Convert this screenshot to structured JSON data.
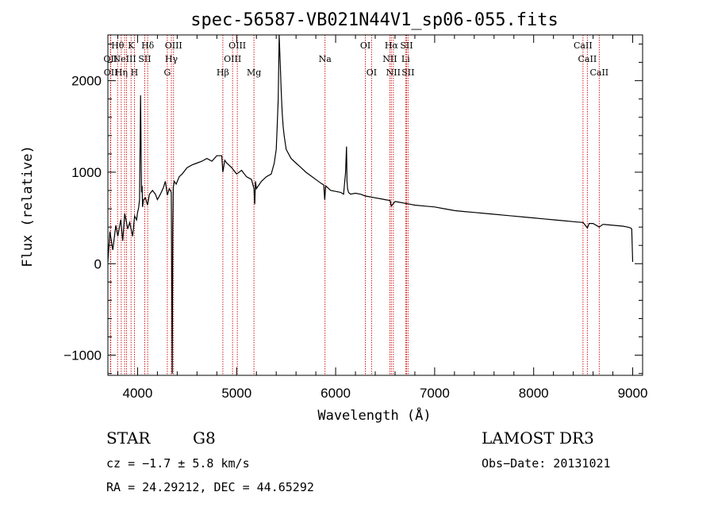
{
  "chart_data": {
    "type": "line",
    "title": "spec-56587-VB021N44V1_sp06-055.fits",
    "xlabel": "Wavelength (Å)",
    "ylabel": "Flux (relative)",
    "xlim": [
      3700,
      9100
    ],
    "ylim": [
      -1220,
      2500
    ],
    "xticks": [
      4000,
      5000,
      6000,
      7000,
      8000,
      9000
    ],
    "yticks": [
      -1000,
      0,
      1000,
      2000
    ],
    "grid": false,
    "series": [
      {
        "x": [
          3700,
          3720,
          3750,
          3780,
          3800,
          3830,
          3850,
          3870,
          3900,
          3920,
          3950,
          3970,
          3990,
          4000,
          4010,
          4020,
          4030,
          4040,
          4045,
          4050,
          4060,
          4080,
          4100,
          4120,
          4150,
          4180,
          4200,
          4230,
          4260,
          4280,
          4300,
          4320,
          4340,
          4350,
          4355,
          4360,
          4370,
          4390,
          4420,
          4450,
          4500,
          4550,
          4600,
          4650,
          4700,
          4750,
          4800,
          4850,
          4861,
          4880,
          4900,
          4950,
          5000,
          5050,
          5100,
          5150,
          5175,
          5183,
          5190,
          5200,
          5250,
          5300,
          5350,
          5380,
          5400,
          5410,
          5420,
          5430,
          5440,
          5450,
          5460,
          5470,
          5480,
          5500,
          5550,
          5600,
          5650,
          5700,
          5750,
          5800,
          5850,
          5880,
          5890,
          5895,
          5900,
          5920,
          5950,
          6000,
          6050,
          6080,
          6100,
          6110,
          6115,
          6120,
          6130,
          6150,
          6200,
          6250,
          6300,
          6350,
          6400,
          6450,
          6500,
          6550,
          6563,
          6600,
          6650,
          6700,
          6750,
          6800,
          6900,
          7000,
          7100,
          7200,
          7300,
          7400,
          7500,
          7600,
          7700,
          7800,
          7900,
          8000,
          8100,
          8200,
          8300,
          8400,
          8500,
          8542,
          8560,
          8600,
          8662,
          8700,
          8800,
          8900,
          8950,
          8980,
          8990,
          9000
        ],
        "y": [
          20,
          350,
          150,
          420,
          300,
          480,
          250,
          550,
          380,
          450,
          300,
          520,
          480,
          560,
          610,
          700,
          1840,
          780,
          850,
          620,
          700,
          720,
          640,
          760,
          800,
          760,
          700,
          760,
          830,
          900,
          750,
          820,
          780,
          -1200,
          400,
          830,
          900,
          870,
          950,
          980,
          1050,
          1080,
          1100,
          1120,
          1150,
          1120,
          1180,
          1180,
          1000,
          1130,
          1100,
          1050,
          980,
          1020,
          950,
          920,
          820,
          650,
          900,
          820,
          900,
          950,
          980,
          1100,
          1250,
          1500,
          1800,
          2500,
          2200,
          1900,
          1650,
          1500,
          1400,
          1250,
          1150,
          1100,
          1050,
          1000,
          960,
          920,
          880,
          860,
          700,
          780,
          850,
          830,
          800,
          790,
          780,
          760,
          1000,
          1280,
          900,
          820,
          780,
          760,
          770,
          760,
          740,
          730,
          720,
          710,
          700,
          690,
          630,
          680,
          670,
          660,
          650,
          640,
          630,
          620,
          600,
          580,
          570,
          560,
          550,
          540,
          530,
          520,
          510,
          500,
          490,
          480,
          470,
          460,
          450,
          390,
          440,
          440,
          400,
          430,
          420,
          410,
          400,
          390,
          380,
          20
        ]
      }
    ],
    "line_markers": [
      {
        "wl": 3726,
        "top": "",
        "mid": "OII",
        "low": ""
      },
      {
        "wl": 3729,
        "top": "",
        "mid": "",
        "low": "OII"
      },
      {
        "wl": 3798,
        "top": "Hθ",
        "mid": "",
        "low": ""
      },
      {
        "wl": 3835,
        "top": "",
        "mid": "",
        "low": "Hη"
      },
      {
        "wl": 3869,
        "top": "",
        "mid": "NeIII",
        "low": ""
      },
      {
        "wl": 3889,
        "top": "",
        "mid": "",
        "low": ""
      },
      {
        "wl": 3934,
        "top": "K",
        "mid": "",
        "low": ""
      },
      {
        "wl": 3968,
        "top": "",
        "mid": "",
        "low": "H"
      },
      {
        "wl": 4072,
        "top": "",
        "mid": "SII",
        "low": ""
      },
      {
        "wl": 4102,
        "top": "Hδ",
        "mid": "",
        "low": ""
      },
      {
        "wl": 4300,
        "top": "",
        "mid": "",
        "low": "G"
      },
      {
        "wl": 4341,
        "top": "",
        "mid": "Hγ",
        "low": ""
      },
      {
        "wl": 4363,
        "top": "OIII",
        "mid": "",
        "low": ""
      },
      {
        "wl": 4861,
        "top": "",
        "mid": "",
        "low": "Hβ"
      },
      {
        "wl": 4959,
        "top": "",
        "mid": "OIII",
        "low": ""
      },
      {
        "wl": 5007,
        "top": "OIII",
        "mid": "",
        "low": ""
      },
      {
        "wl": 5175,
        "top": "",
        "mid": "",
        "low": "Mg"
      },
      {
        "wl": 5893,
        "top": "",
        "mid": "Na",
        "low": ""
      },
      {
        "wl": 6300,
        "top": "OI",
        "mid": "",
        "low": ""
      },
      {
        "wl": 6363,
        "top": "",
        "mid": "",
        "low": "OI"
      },
      {
        "wl": 6548,
        "top": "",
        "mid": "NII",
        "low": ""
      },
      {
        "wl": 6563,
        "top": "Hα",
        "mid": "",
        "low": ""
      },
      {
        "wl": 6583,
        "top": "",
        "mid": "",
        "low": "NII"
      },
      {
        "wl": 6707,
        "top": "",
        "mid": "Li",
        "low": ""
      },
      {
        "wl": 6716,
        "top": "SII",
        "mid": "",
        "low": ""
      },
      {
        "wl": 6731,
        "top": "",
        "mid": "",
        "low": "SII"
      },
      {
        "wl": 8498,
        "top": "CaII",
        "mid": "",
        "low": ""
      },
      {
        "wl": 8542,
        "top": "",
        "mid": "CaII",
        "low": ""
      },
      {
        "wl": 8662,
        "top": "",
        "mid": "",
        "low": "CaII"
      }
    ]
  },
  "info": {
    "class": "STAR",
    "subclass": "G8",
    "cz": "cz = −1.7 ± 5.8 km/s",
    "coords": "RA =  24.29212, DEC =  44.65292",
    "survey": "LAMOST DR3",
    "obs_date": "Obs−Date: 20131021"
  },
  "colors": {
    "spectrum": "#000000",
    "line_marker": "#cc0000",
    "axes": "#000000"
  }
}
